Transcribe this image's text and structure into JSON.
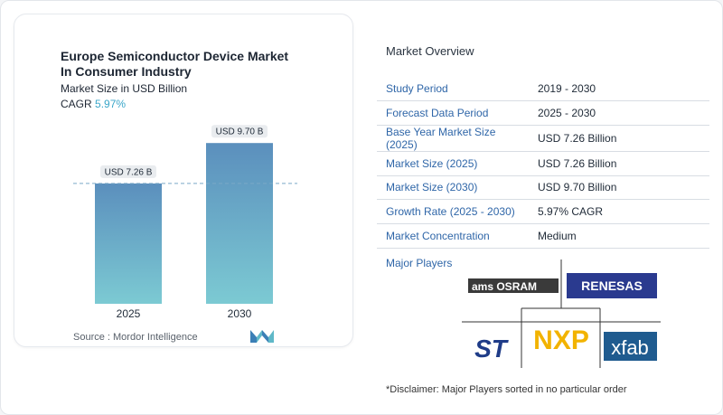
{
  "chart": {
    "title_line1": "Europe Semiconductor Device Market",
    "title_line2": "In Consumer Industry",
    "subtitle": "Market Size in USD Billion",
    "cagr_label": "CAGR",
    "cagr_value": "5.97%",
    "source": "Source :  Mordor Intelligence"
  },
  "chart_data": {
    "type": "bar",
    "categories": [
      "2025",
      "2030"
    ],
    "values": [
      7.26,
      9.7
    ],
    "value_labels": [
      "USD 7.26 B",
      "USD 9.70 B"
    ],
    "title": "Europe Semiconductor Device Market In Consumer Industry",
    "ylabel": "Market Size in USD Billion",
    "colors": {
      "bar_top": "#5b8fbd",
      "bar_bottom": "#7ccad3",
      "reference_line": "#7aa9c6"
    }
  },
  "overview": {
    "heading": "Market Overview",
    "rows": [
      {
        "key": "Study Period",
        "value": "2019 - 2030"
      },
      {
        "key": "Forecast Data Period",
        "value": "2025 - 2030"
      },
      {
        "key": "Base Year Market Size (2025)",
        "value": "USD 7.26 Billion"
      },
      {
        "key": "Market Size (2025)",
        "value": "USD 7.26 Billion"
      },
      {
        "key": "Market Size (2030)",
        "value": "USD 9.70 Billion"
      },
      {
        "key": "Growth Rate (2025 - 2030)",
        "value": "5.97% CAGR"
      },
      {
        "key": "Market Concentration",
        "value": "Medium"
      }
    ],
    "major_players_label": "Major Players",
    "players": [
      "ams OSRAM",
      "RENESAS",
      "ST",
      "NXP",
      "xfab"
    ],
    "disclaimer": "*Disclaimer: Major Players sorted in no particular order"
  },
  "colors": {
    "accent": "#3aa6c9",
    "key_text": "#2f66a8"
  }
}
